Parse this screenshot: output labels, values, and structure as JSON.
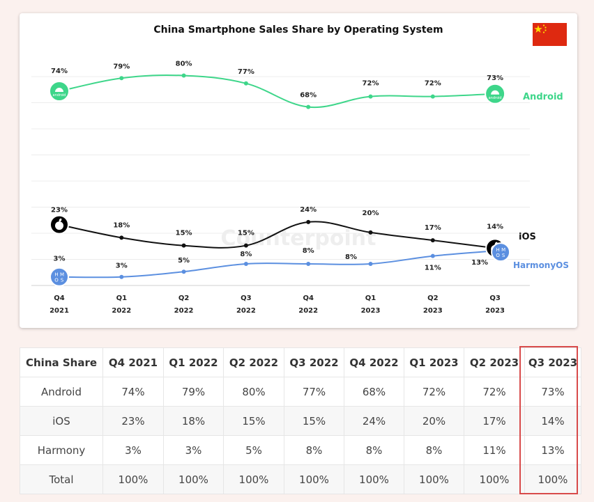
{
  "colors": {
    "android": "#3ed68a",
    "ios": "#111111",
    "harmony": "#5b8fe0",
    "highlight": "#d84a4a",
    "background": "#fbf1ee"
  },
  "chart_data": {
    "type": "line",
    "title": "China Smartphone Sales Share by Operating System",
    "categories": [
      [
        "Q4",
        "2021"
      ],
      [
        "Q1",
        "2022"
      ],
      [
        "Q2",
        "2022"
      ],
      [
        "Q3",
        "2022"
      ],
      [
        "Q4",
        "2022"
      ],
      [
        "Q1",
        "2023"
      ],
      [
        "Q2",
        "2023"
      ],
      [
        "Q3",
        "2023"
      ]
    ],
    "series": [
      {
        "name": "Android",
        "color": "#3ed68a",
        "values": [
          74,
          79,
          80,
          77,
          68,
          72,
          72,
          73
        ],
        "labels": [
          "74%",
          "79%",
          "80%",
          "77%",
          "68%",
          "72%",
          "72%",
          "73%"
        ]
      },
      {
        "name": "iOS",
        "color": "#111111",
        "values": [
          23,
          18,
          15,
          15,
          24,
          20,
          17,
          14
        ],
        "labels": [
          "23%",
          "18%",
          "15%",
          "15%",
          "24%",
          "20%",
          "17%",
          "14%"
        ]
      },
      {
        "name": "HarmonyOS",
        "color": "#5b8fe0",
        "values": [
          3,
          3,
          5,
          8,
          8,
          8,
          11,
          13
        ],
        "labels": [
          "3%",
          "3%",
          "5%",
          "8%",
          "8%",
          "8%",
          "11%",
          "13%"
        ]
      }
    ],
    "watermark": "Counterpoint",
    "icon_labels": {
      "android": "android",
      "harmony": "HMOS"
    }
  },
  "table": {
    "headers": [
      "China Share",
      "Q4 2021",
      "Q1 2022",
      "Q2 2022",
      "Q3 2022",
      "Q4 2022",
      "Q1 2023",
      "Q2 2023",
      "Q3 2023"
    ],
    "rows": [
      [
        "Android",
        "74%",
        "79%",
        "80%",
        "77%",
        "68%",
        "72%",
        "72%",
        "73%"
      ],
      [
        "iOS",
        "23%",
        "18%",
        "15%",
        "15%",
        "24%",
        "20%",
        "17%",
        "14%"
      ],
      [
        "Harmony",
        "3%",
        "3%",
        "5%",
        "8%",
        "8%",
        "8%",
        "11%",
        "13%"
      ],
      [
        "Total",
        "100%",
        "100%",
        "100%",
        "100%",
        "100%",
        "100%",
        "100%",
        "100%"
      ]
    ],
    "highlight_column": "Q3 2023"
  }
}
